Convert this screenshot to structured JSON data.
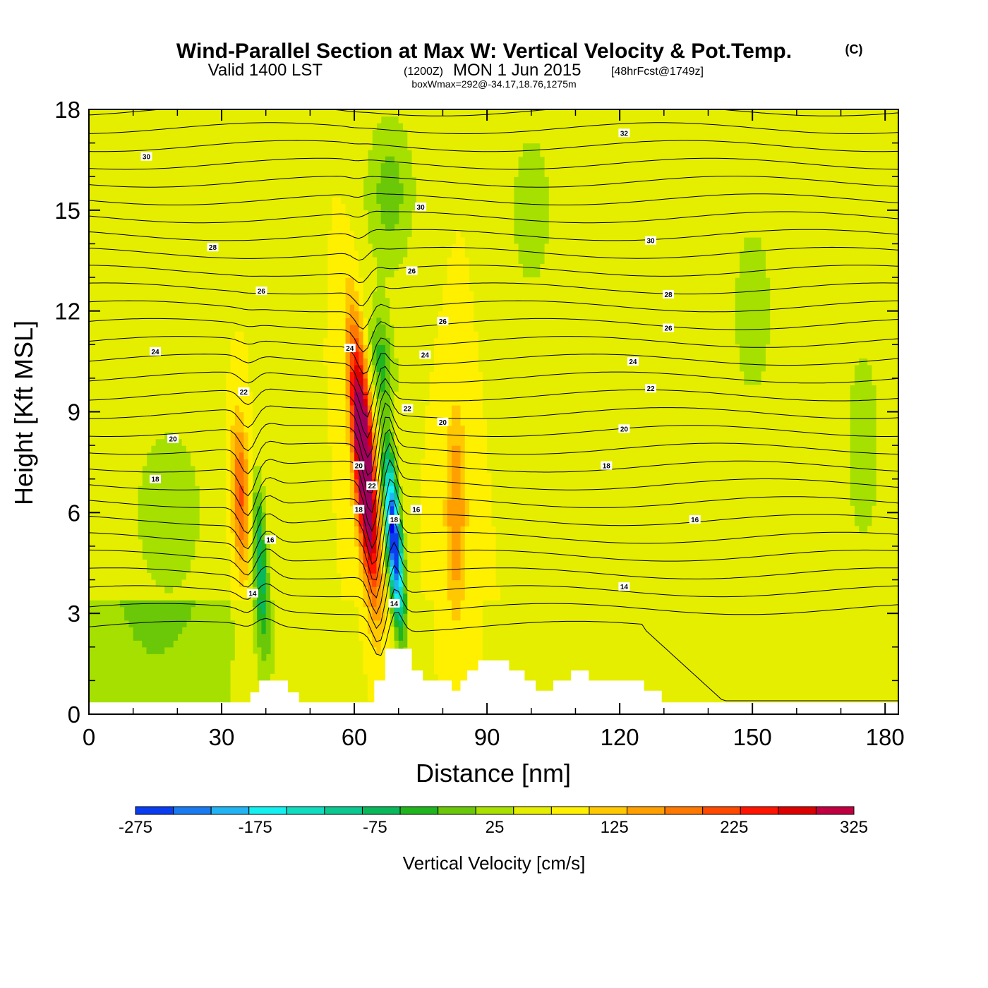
{
  "title": {
    "main": "Wind-Parallel Section at Max W: Vertical Velocity & Pot.Temp.",
    "copyright": "(C)",
    "valid_prefix": "Valid 1400 LST",
    "utc": "(1200Z)",
    "valid_date": "MON 1 Jun 2015",
    "forecast": "[48hrFcst@1749z]",
    "box_info": "boxWmax=292@-34.17,18.76,1275m"
  },
  "chart_data": {
    "type": "heatmap",
    "title": "Wind-Parallel Section at Max W: Vertical Velocity & Pot.Temp.",
    "xlabel": "Distance [nm]",
    "ylabel": "Height [Kft MSL]",
    "xlim": [
      0,
      183
    ],
    "ylim": [
      0,
      18
    ],
    "x_ticks": [
      "0",
      "30",
      "60",
      "90",
      "120",
      "150",
      "180"
    ],
    "y_ticks": [
      "0",
      "3",
      "6",
      "9",
      "12",
      "15",
      "18"
    ],
    "colorbar": {
      "label": "Vertical Velocity [cm/s]",
      "min": -275,
      "max": 325,
      "step": 25,
      "tick_labels": [
        "-275",
        "-175",
        "-75",
        "25",
        "125",
        "225",
        "325"
      ],
      "colors": [
        "#0000ee",
        "#0a3cf0",
        "#1a7af0",
        "#22b4f2",
        "#14f0f0",
        "#10dcc0",
        "#0ac890",
        "#08b85a",
        "#20b41e",
        "#6ac808",
        "#a8e000",
        "#e6ee00",
        "#fff000",
        "#ffc800",
        "#ffa000",
        "#ff7800",
        "#ff4800",
        "#ff1400",
        "#dc0000",
        "#c00040",
        "#a0005c"
      ]
    },
    "updraft_max": {
      "x": 62,
      "y": 8,
      "value": 292
    },
    "downdraft_min": {
      "x": 68,
      "y": 5,
      "value": -275
    },
    "terrain": [
      [
        0,
        0.35
      ],
      [
        36.5,
        0.35
      ],
      [
        36.5,
        0.65
      ],
      [
        38.5,
        0.65
      ],
      [
        38.5,
        1.0
      ],
      [
        45,
        1.0
      ],
      [
        45,
        0.65
      ],
      [
        47.5,
        0.65
      ],
      [
        47.5,
        0.35
      ],
      [
        64.5,
        0.35
      ],
      [
        64.5,
        1.0
      ],
      [
        67,
        1.0
      ],
      [
        67,
        1.95
      ],
      [
        73,
        1.95
      ],
      [
        73,
        1.3
      ],
      [
        75.5,
        1.3
      ],
      [
        75.5,
        1.0
      ],
      [
        82,
        1.0
      ],
      [
        82,
        0.7
      ],
      [
        84,
        0.7
      ],
      [
        84,
        1.0
      ],
      [
        85.5,
        1.0
      ],
      [
        85.5,
        1.3
      ],
      [
        88,
        1.3
      ],
      [
        88,
        1.6
      ],
      [
        95,
        1.6
      ],
      [
        95,
        1.3
      ],
      [
        98.5,
        1.3
      ],
      [
        98.5,
        1.0
      ],
      [
        101,
        1.0
      ],
      [
        101,
        0.7
      ],
      [
        105,
        0.7
      ],
      [
        105,
        1.0
      ],
      [
        109,
        1.0
      ],
      [
        109,
        1.3
      ],
      [
        113,
        1.3
      ],
      [
        113,
        1.0
      ],
      [
        125.5,
        1.0
      ],
      [
        125.5,
        0.7
      ],
      [
        129.5,
        0.7
      ],
      [
        129.5,
        0.35
      ],
      [
        183,
        0.35
      ]
    ],
    "contour_labels": [
      {
        "text": "30",
        "x": 13,
        "y": 16.6
      },
      {
        "text": "32",
        "x": 121,
        "y": 17.3
      },
      {
        "text": "30",
        "x": 75,
        "y": 15.1
      },
      {
        "text": "28",
        "x": 28,
        "y": 13.9
      },
      {
        "text": "30",
        "x": 127,
        "y": 14.1
      },
      {
        "text": "26",
        "x": 73,
        "y": 13.2
      },
      {
        "text": "26",
        "x": 39,
        "y": 12.6
      },
      {
        "text": "28",
        "x": 131,
        "y": 12.5
      },
      {
        "text": "26",
        "x": 80,
        "y": 11.7
      },
      {
        "text": "26",
        "x": 131,
        "y": 11.5
      },
      {
        "text": "24",
        "x": 15,
        "y": 10.8
      },
      {
        "text": "24",
        "x": 59,
        "y": 10.9
      },
      {
        "text": "24",
        "x": 76,
        "y": 10.7
      },
      {
        "text": "24",
        "x": 123,
        "y": 10.5
      },
      {
        "text": "22",
        "x": 35,
        "y": 9.6
      },
      {
        "text": "22",
        "x": 127,
        "y": 9.7
      },
      {
        "text": "22",
        "x": 72,
        "y": 9.1
      },
      {
        "text": "20",
        "x": 19,
        "y": 8.2
      },
      {
        "text": "20",
        "x": 80,
        "y": 8.7
      },
      {
        "text": "20",
        "x": 121,
        "y": 8.5
      },
      {
        "text": "20",
        "x": 61,
        "y": 7.4
      },
      {
        "text": "22",
        "x": 64,
        "y": 6.8
      },
      {
        "text": "18",
        "x": 15,
        "y": 7.0
      },
      {
        "text": "18",
        "x": 117,
        "y": 7.4
      },
      {
        "text": "18",
        "x": 61,
        "y": 6.1
      },
      {
        "text": "18",
        "x": 69,
        "y": 5.8
      },
      {
        "text": "16",
        "x": 74,
        "y": 6.1
      },
      {
        "text": "16",
        "x": 41,
        "y": 5.2
      },
      {
        "text": "16",
        "x": 137,
        "y": 5.8
      },
      {
        "text": "14",
        "x": 121,
        "y": 3.8
      },
      {
        "text": "14",
        "x": 37,
        "y": 3.6
      },
      {
        "text": "14",
        "x": 69,
        "y": 3.3
      }
    ]
  }
}
